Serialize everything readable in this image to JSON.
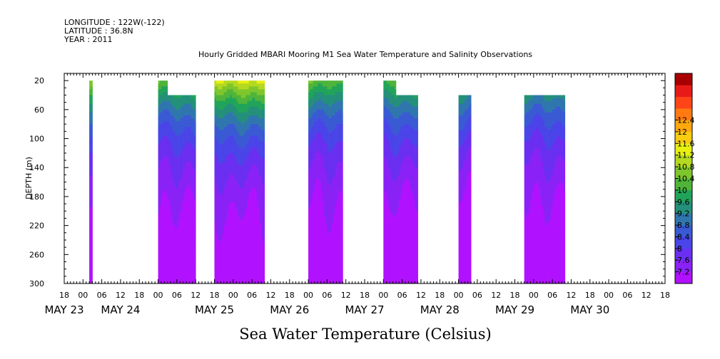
{
  "header": {
    "longitude": "LONGITUDE : 122W(-122)",
    "latitude": "LATITUDE : 36.8N",
    "year": "YEAR : 2011"
  },
  "chart_data": {
    "type": "heatmap",
    "title": "Hourly Gridded MBARI Mooring M1 Sea Water Temperature and Salinity Observations",
    "xlabel": "",
    "ylabel": "DEPTH (m)",
    "colorbar_label": "Sea Water Temperature (Celsius)",
    "units": "Celsius",
    "x_range_hours": [
      -6,
      186
    ],
    "y_range": [
      300,
      10
    ],
    "y_ticks": [
      20,
      60,
      100,
      140,
      180,
      220,
      260,
      300
    ],
    "x_hour_tick_labels": [
      "18",
      "00",
      "06",
      "12",
      "18",
      "00",
      "06",
      "12",
      "18",
      "00",
      "06",
      "12",
      "18",
      "00",
      "06",
      "12",
      "18",
      "00",
      "06",
      "12",
      "18",
      "00",
      "06",
      "12",
      "18",
      "00",
      "06",
      "12",
      "18",
      "00",
      "06",
      "12",
      "18"
    ],
    "date_labels": [
      {
        "label": "MAY 23",
        "hour": -6
      },
      {
        "label": "MAY 24",
        "hour": 12
      },
      {
        "label": "MAY 25",
        "hour": 42
      },
      {
        "label": "MAY 26",
        "hour": 66
      },
      {
        "label": "MAY 27",
        "hour": 90
      },
      {
        "label": "MAY 28",
        "hour": 114
      },
      {
        "label": "MAY 29",
        "hour": 138
      },
      {
        "label": "MAY 30",
        "hour": 162
      }
    ],
    "colorbar_levels": [
      7.2,
      7.6,
      8,
      8.4,
      8.8,
      9.2,
      9.6,
      10,
      10.4,
      10.8,
      11.2,
      11.6,
      12,
      12.4
    ],
    "colorbar_colors": [
      "#b012ff",
      "#8a22f6",
      "#6a2ff0",
      "#4a45e8",
      "#3a5ad4",
      "#3076ae",
      "#24907a",
      "#21a45a",
      "#4fb43a",
      "#7ec62c",
      "#b5d920",
      "#e8f010",
      "#f8cc10",
      "#ffa810",
      "#ff7a10",
      "#ff4418",
      "#e81a18",
      "#a80000"
    ],
    "segments": [
      {
        "start_hour": 2,
        "end_hour": 3,
        "top_depth": 20,
        "surface_temp": 10.6
      },
      {
        "start_hour": 24,
        "end_hour": 36,
        "top_depth": 40,
        "surface_temp": 10.5,
        "shallow": {
          "end_hour": 27,
          "top_depth": 20
        }
      },
      {
        "start_hour": 42,
        "end_hour": 58,
        "top_depth": 20,
        "surface_temp": 11.3
      },
      {
        "start_hour": 72,
        "end_hour": 83,
        "top_depth": 20,
        "surface_temp": 10.4
      },
      {
        "start_hour": 96,
        "end_hour": 107,
        "top_depth": 40,
        "surface_temp": 10.3,
        "shallow": {
          "end_hour": 100,
          "top_depth": 20
        }
      },
      {
        "start_hour": 120,
        "end_hour": 124,
        "top_depth": 40,
        "surface_temp": 10.0
      },
      {
        "start_hour": 141,
        "end_hour": 154,
        "top_depth": 40,
        "surface_temp": 10.1
      }
    ],
    "grid": false
  }
}
